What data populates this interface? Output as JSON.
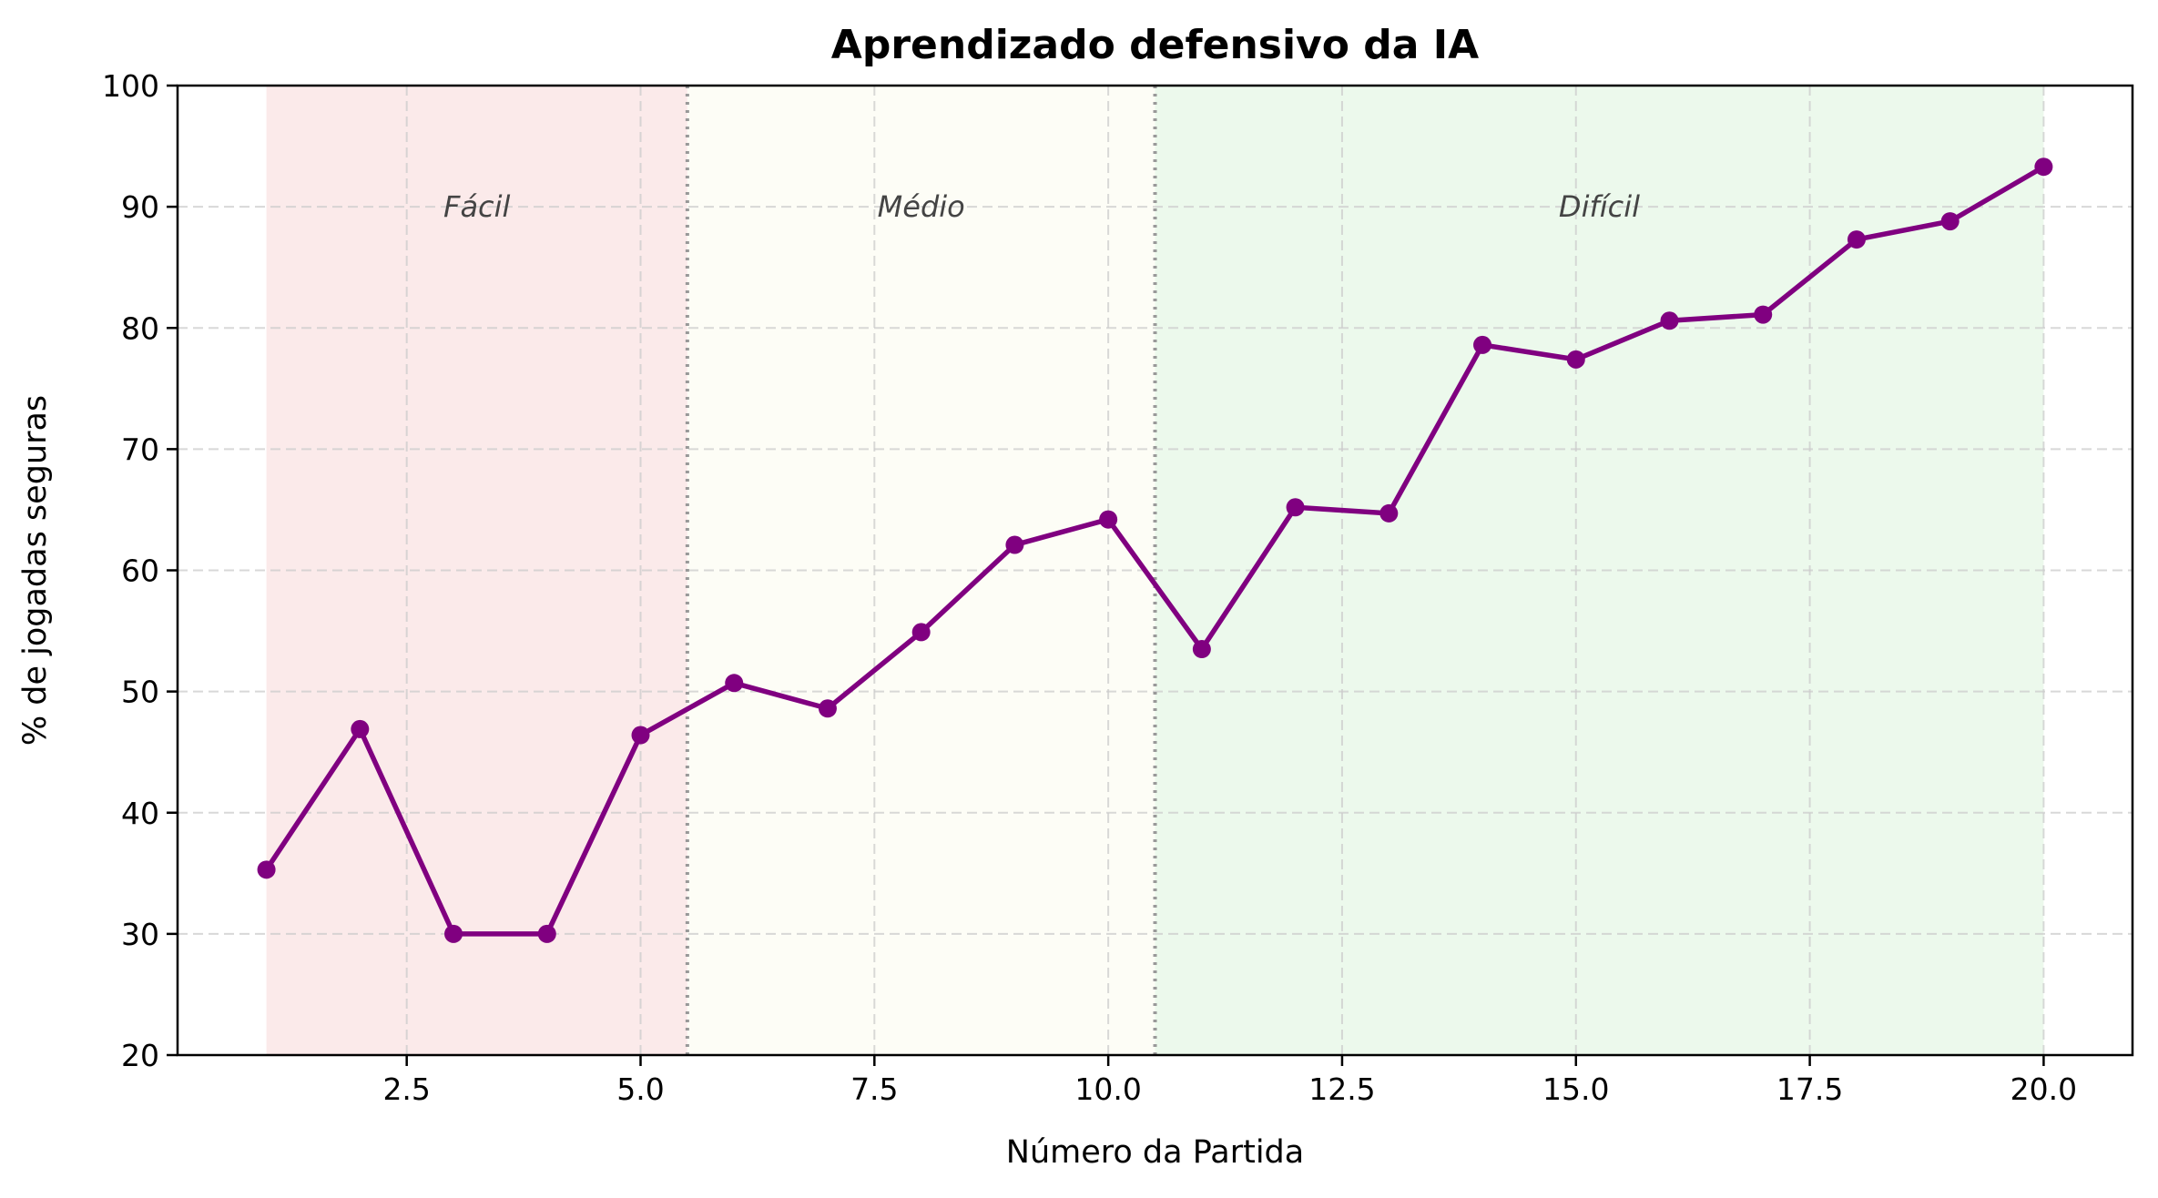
{
  "chart_data": {
    "type": "line",
    "title": "Aprendizado defensivo da IA",
    "xlabel": "Número da Partida",
    "ylabel": "% de jogadas seguras",
    "xlim": [
      0.05,
      20.95
    ],
    "ylim": [
      20,
      100
    ],
    "xticks": [
      2.5,
      5.0,
      7.5,
      10.0,
      12.5,
      15.0,
      17.5,
      20.0
    ],
    "xtick_labels": [
      "2.5",
      "5.0",
      "7.5",
      "10.0",
      "12.5",
      "15.0",
      "17.5",
      "20.0"
    ],
    "yticks": [
      20,
      30,
      40,
      50,
      60,
      70,
      80,
      90,
      100
    ],
    "ytick_labels": [
      "20",
      "30",
      "40",
      "50",
      "60",
      "70",
      "80",
      "90",
      "100"
    ],
    "grid": true,
    "legend": "none",
    "x": [
      1,
      2,
      3,
      4,
      5,
      6,
      7,
      8,
      9,
      10,
      11,
      12,
      13,
      14,
      15,
      16,
      17,
      18,
      19,
      20
    ],
    "y": [
      35.3,
      46.9,
      30.0,
      30.0,
      46.4,
      50.7,
      48.6,
      54.9,
      62.1,
      64.2,
      53.5,
      65.2,
      64.7,
      78.6,
      77.4,
      80.6,
      81.1,
      87.3,
      88.8,
      93.3
    ],
    "line_color": "#800080",
    "zones": [
      {
        "label": "Fácil",
        "x_start": 1,
        "x_end": 5.5,
        "color": "#fbeaea"
      },
      {
        "label": "Médio",
        "x_start": 5.5,
        "x_end": 10.5,
        "color": "#fdfdf6"
      },
      {
        "label": "Difícil",
        "x_start": 10.5,
        "x_end": 20,
        "color": "#ecf9ec"
      }
    ],
    "zone_label_y": 90,
    "zone_dividers": [
      5.5,
      10.5
    ]
  }
}
